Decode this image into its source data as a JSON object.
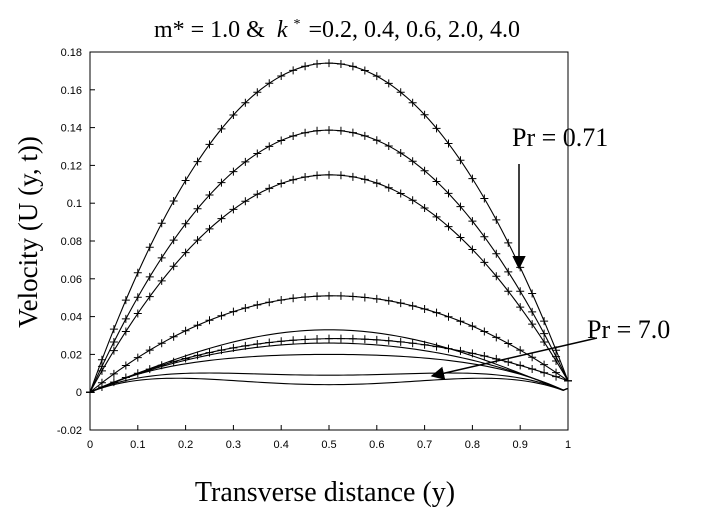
{
  "chart_data": {
    "type": "line",
    "title_main": "m* = 1.0 &",
    "title_k_symbol": "k",
    "title_k_sup": "*",
    "title_values": "=0.2, 0.4, 0.6, 2.0, 4.0",
    "xlabel": "Transverse distance (y)",
    "ylabel": "Velocity (U (y, t))",
    "xlim": [
      0,
      1
    ],
    "ylim": [
      -0.02,
      0.18
    ],
    "x_ticks": [
      "0",
      "0.1",
      "0.2",
      "0.3",
      "0.4",
      "0.5",
      "0.6",
      "0.7",
      "0.8",
      "0.9",
      "1"
    ],
    "y_ticks": [
      "-0.02",
      "0",
      "0.02",
      "0.04",
      "0.06",
      "0.08",
      "0.1",
      "0.12",
      "0.14",
      "0.16",
      "0.18"
    ],
    "grid": false,
    "annotations": [
      {
        "text": "Pr = 0.71"
      },
      {
        "text": "Pr = 7.0"
      }
    ],
    "series": [
      {
        "group": "Pr = 0.71",
        "marker": "plus",
        "peak": 0.176
      },
      {
        "group": "Pr = 0.71",
        "marker": "plus",
        "peak": 0.14
      },
      {
        "group": "Pr = 0.71",
        "marker": "plus",
        "peak": 0.116
      },
      {
        "group": "Pr = 0.71",
        "marker": "plus",
        "peak": 0.051
      },
      {
        "group": "Pr = 0.71",
        "marker": "plus",
        "peak": 0.028
      },
      {
        "group": "Pr = 7.0",
        "marker": "none",
        "side_peak": 0.043,
        "middle": 0.033
      },
      {
        "group": "Pr = 7.0",
        "marker": "none",
        "side_peak": 0.037,
        "middle": 0.026
      },
      {
        "group": "Pr = 7.0",
        "marker": "none",
        "side_peak": 0.032,
        "middle": 0.02
      },
      {
        "group": "Pr = 7.0",
        "marker": "none",
        "side_peak": 0.02,
        "middle": 0.009
      },
      {
        "group": "Pr = 7.0",
        "marker": "none",
        "side_peak": 0.014,
        "middle": 0.004
      }
    ]
  }
}
